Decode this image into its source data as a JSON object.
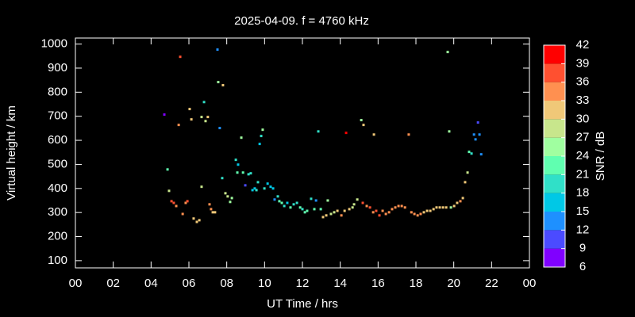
{
  "chart_data": {
    "type": "scatter",
    "title": "2025-04-09. f = 4760 kHz",
    "x_label": "UT Time / hrs",
    "y_label": "Virtual height / km",
    "colorbar_label": "SNR / dB",
    "x": [
      4.7,
      4.87,
      4.95,
      5.08,
      5.2,
      5.33,
      5.54,
      5.46,
      5.67,
      5.83,
      5.92,
      6.04,
      6.13,
      6.25,
      6.42,
      6.55,
      6.67,
      6.67,
      6.8,
      6.88,
      7.0,
      7.09,
      7.17,
      7.26,
      7.38,
      7.51,
      7.55,
      7.63,
      7.8,
      7.76,
      7.93,
      8.05,
      8.18,
      8.27,
      8.48,
      8.6,
      8.56,
      8.77,
      8.86,
      8.98,
      9.15,
      9.27,
      9.36,
      9.48,
      9.57,
      9.65,
      9.74,
      9.82,
      9.9,
      9.99,
      10.16,
      10.32,
      10.45,
      10.53,
      10.7,
      10.78,
      10.91,
      11.04,
      11.2,
      11.37,
      11.54,
      11.71,
      11.88,
      12.0,
      12.13,
      12.25,
      12.46,
      12.63,
      12.72,
      12.84,
      12.97,
      13.09,
      13.26,
      13.34,
      13.51,
      13.68,
      13.85,
      14.06,
      14.23,
      14.31,
      14.48,
      14.65,
      14.73,
      14.9,
      15.11,
      15.23,
      15.19,
      15.4,
      15.57,
      15.74,
      15.78,
      15.9,
      16.07,
      16.24,
      16.41,
      16.58,
      16.74,
      16.91,
      17.08,
      17.25,
      17.42,
      17.62,
      17.76,
      17.92,
      18.09,
      18.25,
      18.42,
      18.59,
      18.76,
      18.93,
      19.09,
      19.26,
      19.43,
      19.6,
      19.68,
      19.76,
      19.85,
      20.02,
      20.18,
      20.35,
      20.48,
      20.6,
      20.73,
      20.81,
      20.94,
      21.07,
      21.15,
      21.28,
      21.36,
      21.45
    ],
    "y": [
      707,
      479,
      390,
      347,
      340,
      327,
      947,
      664,
      294,
      340,
      347,
      730,
      687,
      275,
      261,
      268,
      407,
      697,
      759,
      680,
      697,
      334,
      314,
      301,
      301,
      977,
      842,
      651,
      829,
      443,
      380,
      367,
      344,
      360,
      519,
      499,
      466,
      611,
      466,
      413,
      459,
      463,
      393,
      400,
      393,
      426,
      585,
      618,
      644,
      400,
      420,
      407,
      400,
      354,
      367,
      347,
      340,
      327,
      340,
      321,
      334,
      340,
      321,
      314,
      301,
      307,
      357,
      314,
      350,
      637,
      314,
      281,
      288,
      350,
      294,
      301,
      307,
      288,
      307,
      631,
      314,
      321,
      334,
      354,
      684,
      664,
      340,
      327,
      321,
      301,
      624,
      307,
      288,
      307,
      294,
      301,
      314,
      321,
      327,
      327,
      321,
      624,
      301,
      294,
      288,
      294,
      301,
      307,
      307,
      314,
      321,
      321,
      321,
      321,
      967,
      637,
      321,
      327,
      340,
      347,
      360,
      426,
      466,
      552,
      545,
      624,
      604,
      674,
      624,
      542
    ],
    "snr": [
      7,
      22,
      28,
      37,
      38,
      35,
      37,
      33,
      34,
      35,
      37,
      30,
      30,
      30,
      31,
      31,
      29,
      29,
      19,
      28,
      30,
      35,
      34,
      32,
      30,
      14,
      25,
      14,
      30,
      18,
      29,
      28,
      24,
      24,
      19,
      16,
      23,
      25,
      23,
      11,
      20,
      20,
      17,
      16,
      19,
      18,
      16,
      18,
      24,
      18,
      17,
      16,
      17,
      14,
      18,
      22,
      23,
      20,
      16,
      22,
      18,
      19,
      21,
      19,
      21,
      22,
      18,
      22,
      12,
      19,
      22,
      32,
      30,
      24,
      29,
      27,
      30,
      33,
      31,
      40,
      30,
      27,
      27,
      28,
      25,
      30,
      37,
      35,
      37,
      34,
      31,
      36,
      38,
      34,
      33,
      34,
      33,
      34,
      34,
      34,
      35,
      34,
      33,
      34,
      33,
      33,
      31,
      31,
      30,
      31,
      31,
      30,
      31,
      31,
      26,
      24,
      24,
      30,
      32,
      33,
      30,
      30,
      29,
      21,
      20,
      12,
      13,
      11,
      12,
      13
    ],
    "xlim": [
      0,
      24
    ],
    "xticks": [
      {
        "value": 0,
        "label": "00"
      },
      {
        "value": 2,
        "label": "02"
      },
      {
        "value": 4,
        "label": "04"
      },
      {
        "value": 6,
        "label": "06"
      },
      {
        "value": 8,
        "label": "08"
      },
      10,
      12,
      14,
      16,
      18,
      20,
      22,
      {
        "value": 24,
        "label": "00"
      }
    ],
    "ylim": [
      70,
      1025
    ],
    "yticks": [
      100,
      200,
      300,
      400,
      500,
      600,
      700,
      800,
      900,
      1000
    ],
    "clim": [
      6,
      42
    ],
    "cticks": [
      6,
      9,
      12,
      15,
      18,
      21,
      24,
      27,
      30,
      33,
      36,
      39,
      42
    ],
    "colorscale": [
      "#8000ff",
      "#4b4bff",
      "#1e90ff",
      "#00c8e6",
      "#30e0c8",
      "#60ffb0",
      "#a0ffa0",
      "#c8e68c",
      "#f0c878",
      "#ff9050",
      "#ff5030",
      "#ff0000"
    ],
    "background": "#000000"
  }
}
